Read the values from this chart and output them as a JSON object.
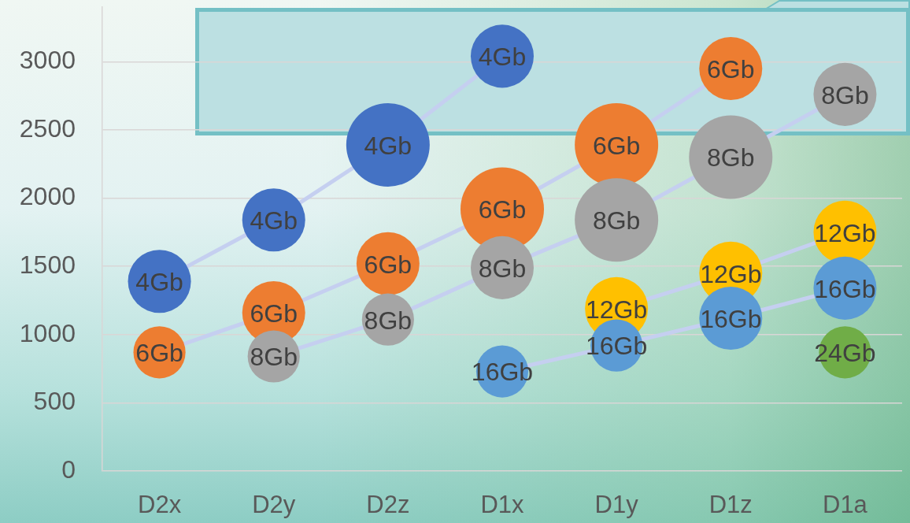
{
  "chart_data": {
    "type": "bubble",
    "categories": [
      "D2x",
      "D2y",
      "D2z",
      "D1x",
      "D1y",
      "D1z",
      "D1a"
    ],
    "ylim": [
      0,
      3400
    ],
    "yticks": [
      0,
      500,
      1000,
      1500,
      2000,
      2500,
      3000
    ],
    "grid": "y",
    "series": [
      {
        "name": "4Gb",
        "color": "#4472c4",
        "line_style": "solid",
        "values": [
          1390,
          1840,
          2390,
          3040,
          null,
          null,
          null
        ],
        "sizes": [
          0.57,
          0.57,
          1,
          0.57,
          null,
          null,
          null
        ]
      },
      {
        "name": "6Gb",
        "color": "#ed7d31",
        "line_style": "solid",
        "values": [
          870,
          1160,
          1520,
          1920,
          2390,
          2950,
          null
        ],
        "sizes": [
          0.39,
          0.57,
          0.57,
          1,
          1,
          0.57,
          null
        ]
      },
      {
        "name": "8Gb",
        "color": "#a5a5a5",
        "line_style": "solid",
        "values": [
          null,
          840,
          1110,
          1490,
          1840,
          2300,
          2760
        ],
        "sizes": [
          null,
          0.39,
          0.39,
          0.57,
          1,
          1,
          0.57
        ]
      },
      {
        "name": "12Gb",
        "color": "#ffc000",
        "line_style": "solid",
        "values": [
          null,
          null,
          null,
          null,
          1190,
          1450,
          1750
        ],
        "sizes": [
          null,
          null,
          null,
          null,
          0.57,
          0.57,
          0.57
        ]
      },
      {
        "name": "16Gb",
        "color": "#5b9bd5",
        "line_style": "solid",
        "values": [
          null,
          null,
          null,
          730,
          920,
          1120,
          1340
        ],
        "sizes": [
          null,
          null,
          null,
          0.39,
          0.39,
          0.57,
          0.57
        ]
      },
      {
        "name": "24Gb",
        "color": "#70ad47",
        "values": [
          null,
          null,
          null,
          null,
          null,
          null,
          870
        ],
        "sizes": [
          null,
          null,
          null,
          null,
          null,
          null,
          0.39
        ]
      }
    ]
  }
}
